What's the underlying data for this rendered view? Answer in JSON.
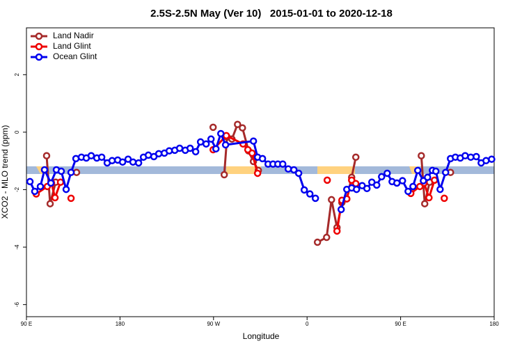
{
  "chart_data": {
    "type": "line",
    "title": "2.5S-2.5N May (Ver 10)   2015-01-01 to 2020-12-18",
    "x_label": "Longitude",
    "y_label": "XCO2 - MLO trend (ppm)",
    "xlim": [
      90,
      540
    ],
    "ylim": [
      -6.42,
      3.63
    ],
    "xticks": [
      {
        "value": 90,
        "label": "90 E"
      },
      180,
      {
        "value": 270,
        "label": "90 W"
      },
      {
        "value": 360,
        "label": "0"
      },
      {
        "value": 450,
        "label": "90 E"
      },
      {
        "value": 540,
        "label": "180"
      }
    ],
    "yticks": [
      -6,
      -4,
      -2,
      0,
      2
    ],
    "legend": "top-left",
    "series": [
      {
        "name": "Land Nadir",
        "color": "#a52a2a",
        "x": [
          109.4,
          112.8,
          118.1,
          null,
          138.2,
          null,
          269.6,
          null,
          280.3,
          283,
          287.7,
          293.1,
          297.8,
          303.7,
          308.4,
          313.1,
          null,
          370,
          378.8,
          383.5,
          388.8,
          393.5,
          398.2,
          402.9,
          406.9,
          null,
          469.9,
          473.2,
          477.9,
          null,
          498
        ],
        "values": [
          -0.82,
          -2.49,
          -1.74,
          null,
          -1.4,
          null,
          0.17,
          null,
          -1.48,
          -0.17,
          -0.24,
          0.27,
          0.15,
          -0.65,
          -1.02,
          -1.33,
          null,
          -3.83,
          -3.66,
          -2.35,
          -3.32,
          -2.45,
          -2.32,
          -1.57,
          -0.87,
          null,
          -0.82,
          -2.49,
          -1.74,
          null,
          -1.4
        ]
      },
      {
        "name": "Land Glint",
        "color": "#ee0000",
        "x": [
          99.4,
          110.1,
          114.1,
          117.5,
          122.8,
          null,
          132.9,
          null,
          269.6,
          282.3,
          298.4,
          303,
          307.1,
          312.4,
          null,
          379.4,
          null,
          388.8,
          393.5,
          398.2,
          402.9,
          406.9,
          null,
          459.8,
          468.5,
          472.6,
          477.3,
          482.6,
          null,
          492
        ],
        "values": [
          -2.15,
          -1.89,
          -1.77,
          -2.28,
          -1.74,
          null,
          -2.3,
          null,
          -0.61,
          -0.12,
          -0.41,
          -0.61,
          -0.73,
          -1.43,
          null,
          -1.67,
          null,
          -3.44,
          -2.37,
          -2.32,
          -1.67,
          -1.79,
          null,
          -2.13,
          -1.89,
          -1.77,
          -2.28,
          -1.67,
          null,
          -2.3
        ]
      },
      {
        "name": "Ocean Glint",
        "color": "#0000ee",
        "x": [
          93.4,
          98,
          103.4,
          107.4,
          113.5,
          118.8,
          123.5,
          128.2,
          132.9,
          137.6,
          142.9,
          147.6,
          152.3,
          157.7,
          162.4,
          167.7,
          172.4,
          177.8,
          182.5,
          187.8,
          192.5,
          197.9,
          202.6,
          207.3,
          212.6,
          217.3,
          222.7,
          227.4,
          232.7,
          237.4,
          242.8,
          247.5,
          252.8,
          257.5,
          262.9,
          267.6,
          272.3,
          277,
          281.6,
          308.4,
          312.4,
          317.1,
          322.5,
          327.2,
          331.9,
          336.6,
          341.9,
          347.3,
          351.9,
          357.3,
          362.7,
          368,
          null,
          392.8,
          398.2,
          402.9,
          407.6,
          413,
          417.6,
          422.3,
          427,
          431.7,
          437.1,
          441.8,
          446.4,
          451.8,
          457.2,
          461.9,
          466.5,
          471.9,
          475.9,
          480.6,
          483.9,
          488,
          493.3,
          498,
          502.7,
          507.4,
          512.1,
          517.5,
          522.8,
          527.5,
          532.2,
          537.6
        ],
        "values": [
          -1.72,
          -2.06,
          -1.89,
          -1.31,
          -1.77,
          -1.31,
          -1.36,
          -1.99,
          -1.4,
          -0.92,
          -0.87,
          -0.9,
          -0.82,
          -0.9,
          -0.87,
          -1.07,
          -0.99,
          -0.97,
          -1.04,
          -0.94,
          -1.04,
          -1.07,
          -0.87,
          -0.8,
          -0.85,
          -0.75,
          -0.73,
          -0.65,
          -0.63,
          -0.56,
          -0.63,
          -0.56,
          -0.68,
          -0.34,
          -0.41,
          -0.24,
          -0.58,
          -0.05,
          -0.44,
          -0.31,
          -0.87,
          -0.92,
          -1.11,
          -1.11,
          -1.11,
          -1.11,
          -1.28,
          -1.31,
          -1.43,
          -2.01,
          -2.15,
          -2.3,
          null,
          -2.69,
          -1.99,
          -1.94,
          -1.99,
          -1.86,
          -1.96,
          -1.74,
          -1.84,
          -1.55,
          -1.43,
          -1.72,
          -1.77,
          -1.69,
          -2.06,
          -1.89,
          -1.33,
          -1.69,
          -1.57,
          -1.33,
          -1.36,
          -1.99,
          -1.4,
          -0.92,
          -0.87,
          -0.9,
          -0.82,
          -0.87,
          -0.85,
          -1.07,
          -0.99,
          -0.94
        ]
      }
    ]
  }
}
